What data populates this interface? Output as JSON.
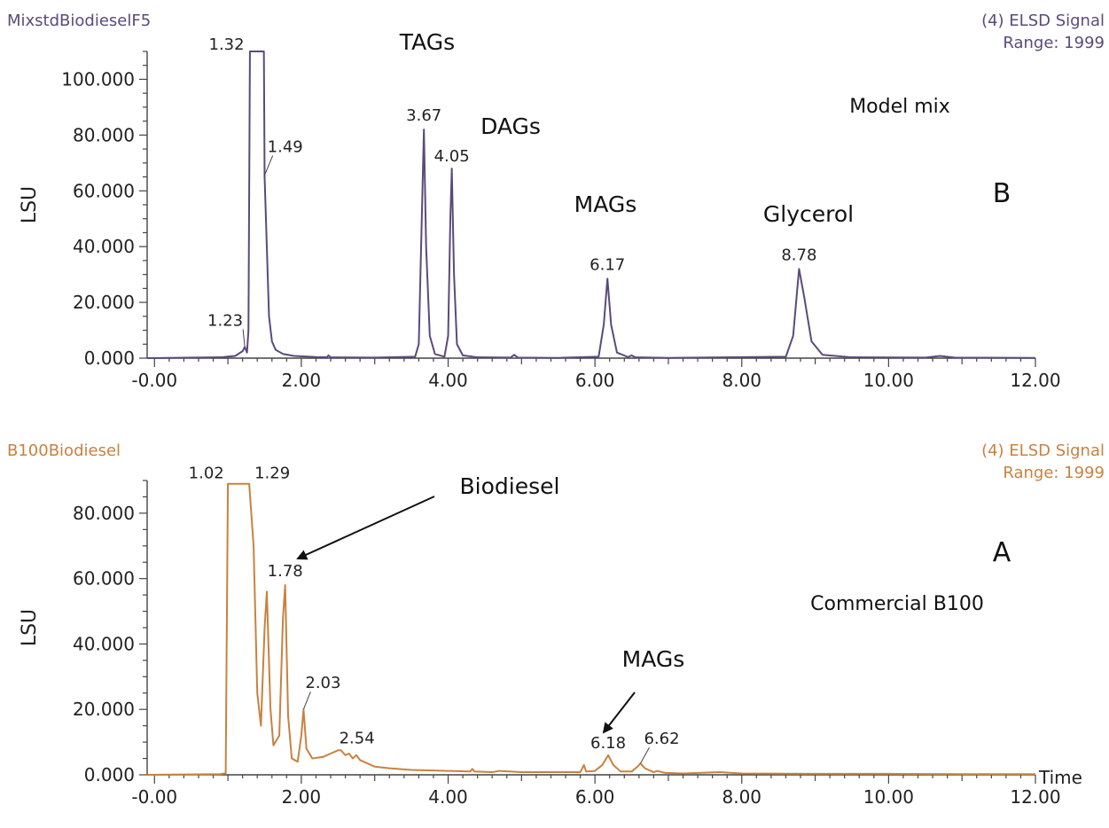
{
  "chart_data": [
    {
      "type": "line",
      "panel_letter": "B",
      "sample_name": "MixstdBiodieselF5",
      "signal_label": "(4) ELSD Signal",
      "range_label": "Range: 1999",
      "ylabel": "LSU",
      "xlabel": "",
      "line_color": "#5b4a7a",
      "header_color": "#5b4a7a",
      "xlim": [
        -0.1,
        12.0
      ],
      "ylim": [
        0,
        110
      ],
      "x_ticks": [
        {
          "value": 0,
          "label": "-0.00"
        },
        {
          "value": 2,
          "label": "2.00"
        },
        {
          "value": 4,
          "label": "4.00"
        },
        {
          "value": 6,
          "label": "6.00"
        },
        {
          "value": 8,
          "label": "8.00"
        },
        {
          "value": 10,
          "label": "10.00"
        },
        {
          "value": 12,
          "label": "12.00"
        }
      ],
      "y_ticks": [
        {
          "value": 0,
          "label": "0.000"
        },
        {
          "value": 20,
          "label": "20.000"
        },
        {
          "value": 40,
          "label": "40.000"
        },
        {
          "value": 60,
          "label": "60.000"
        },
        {
          "value": 80,
          "label": "80.000"
        },
        {
          "value": 100,
          "label": "100.000"
        }
      ],
      "series": [
        {
          "x": [
            -0.1,
            0.9,
            1.1,
            1.2,
            1.23,
            1.26,
            1.28,
            1.3,
            1.32,
            1.49,
            1.5,
            1.53,
            1.56,
            1.6,
            1.65,
            1.75,
            1.9,
            2.2,
            2.35,
            2.37,
            2.4,
            3.0,
            3.55,
            3.6,
            3.65,
            3.67,
            3.7,
            3.75,
            3.82,
            3.95,
            4.0,
            4.03,
            4.05,
            4.08,
            4.12,
            4.2,
            4.4,
            4.85,
            4.9,
            4.95,
            5.5,
            6.05,
            6.12,
            6.17,
            6.22,
            6.3,
            6.45,
            6.5,
            6.55,
            7.0,
            8.6,
            8.7,
            8.78,
            8.85,
            8.95,
            9.1,
            9.5,
            10.5,
            10.7,
            10.9,
            12.0
          ],
          "y": [
            0,
            0.3,
            0.8,
            2.5,
            4.0,
            2.0,
            10.0,
            110.0,
            110.0,
            110.0,
            65.0,
            40.0,
            15.0,
            6.0,
            3.0,
            1.5,
            0.8,
            0.4,
            0.3,
            1.0,
            0.3,
            0.2,
            0.5,
            5.0,
            60.0,
            82.0,
            40.0,
            8.0,
            1.5,
            0.5,
            8.0,
            50.0,
            68.0,
            30.0,
            5.0,
            1.0,
            0.3,
            0.2,
            1.2,
            0.2,
            0.1,
            0.5,
            12.0,
            28.5,
            12.0,
            2.0,
            0.4,
            1.0,
            0.3,
            0.1,
            0.5,
            8.0,
            32.0,
            22.0,
            6.0,
            1.2,
            0.3,
            0.2,
            0.8,
            0.2,
            0.1
          ]
        }
      ],
      "peaks": [
        {
          "x": 1.23,
          "y": 4.0,
          "label": "1.23"
        },
        {
          "x": 1.32,
          "y": 110.0,
          "label": "1.32"
        },
        {
          "x": 1.49,
          "y": 65.0,
          "label": "1.49"
        },
        {
          "x": 3.67,
          "y": 82.0,
          "label": "3.67"
        },
        {
          "x": 4.05,
          "y": 68.0,
          "label": "4.05"
        },
        {
          "x": 6.17,
          "y": 28.5,
          "label": "6.17"
        },
        {
          "x": 8.78,
          "y": 32.0,
          "label": "8.78"
        }
      ],
      "annotations": [
        {
          "text": "TAGs"
        },
        {
          "text": "DAGs"
        },
        {
          "text": "MAGs"
        },
        {
          "text": "Glycerol"
        },
        {
          "text": "Model mix"
        }
      ]
    },
    {
      "type": "line",
      "panel_letter": "A",
      "sample_name": "B100Biodiesel",
      "signal_label": "(4) ELSD Signal",
      "range_label": "Range: 1999",
      "ylabel": "LSU",
      "xlabel": "Time",
      "line_color": "#c8823f",
      "header_color": "#c8823f",
      "xlim": [
        -0.1,
        12.0
      ],
      "ylim": [
        0,
        90
      ],
      "x_ticks": [
        {
          "value": 0,
          "label": "-0.00"
        },
        {
          "value": 2,
          "label": "2.00"
        },
        {
          "value": 4,
          "label": "4.00"
        },
        {
          "value": 6,
          "label": "6.00"
        },
        {
          "value": 8,
          "label": "8.00"
        },
        {
          "value": 10,
          "label": "10.00"
        },
        {
          "value": 12,
          "label": "12.00"
        }
      ],
      "y_ticks": [
        {
          "value": 0,
          "label": "0.000"
        },
        {
          "value": 20,
          "label": "20.000"
        },
        {
          "value": 40,
          "label": "40.000"
        },
        {
          "value": 60,
          "label": "60.000"
        },
        {
          "value": 80,
          "label": "80.000"
        }
      ],
      "series": [
        {
          "x": [
            -0.1,
            0.9,
            0.97,
            1.0,
            1.02,
            1.29,
            1.35,
            1.4,
            1.45,
            1.5,
            1.53,
            1.58,
            1.62,
            1.7,
            1.75,
            1.78,
            1.82,
            1.87,
            1.95,
            2.0,
            2.03,
            2.07,
            2.15,
            2.3,
            2.4,
            2.45,
            2.5,
            2.54,
            2.6,
            2.65,
            2.7,
            2.75,
            2.8,
            2.9,
            3.0,
            3.2,
            3.5,
            4.0,
            4.3,
            4.33,
            4.36,
            4.6,
            4.7,
            5.0,
            5.5,
            5.8,
            5.85,
            5.88,
            6.0,
            6.1,
            6.18,
            6.25,
            6.35,
            6.5,
            6.58,
            6.62,
            6.68,
            6.8,
            6.85,
            6.95,
            7.2,
            7.7,
            8.0,
            9.0,
            10.0,
            11.0,
            12.0
          ],
          "y": [
            0,
            0.2,
            0.5,
            89.0,
            89.0,
            89.0,
            70.0,
            25.0,
            15.0,
            45.0,
            56.0,
            20.0,
            9.0,
            12.0,
            48.0,
            58.0,
            18.0,
            5.0,
            4.0,
            12.0,
            20.0,
            8.0,
            5.0,
            5.5,
            6.5,
            7.0,
            7.5,
            7.5,
            6.0,
            6.5,
            5.0,
            6.0,
            4.5,
            3.5,
            2.5,
            2.0,
            1.5,
            1.2,
            1.0,
            1.8,
            1.0,
            0.8,
            1.2,
            0.8,
            0.8,
            0.8,
            3.0,
            1.0,
            1.2,
            3.0,
            6.0,
            3.0,
            1.0,
            1.0,
            2.5,
            3.5,
            2.0,
            0.8,
            1.2,
            0.6,
            0.4,
            0.8,
            0.4,
            0.3,
            0.3,
            0.2,
            0.2
          ]
        }
      ],
      "peaks": [
        {
          "x": 1.02,
          "y": 89.0,
          "label": "1.02"
        },
        {
          "x": 1.29,
          "y": 89.0,
          "label": "1.29"
        },
        {
          "x": 1.78,
          "y": 58.0,
          "label": "1.78"
        },
        {
          "x": 2.03,
          "y": 20.0,
          "label": "2.03"
        },
        {
          "x": 2.54,
          "y": 7.5,
          "label": "2.54"
        },
        {
          "x": 6.18,
          "y": 6.0,
          "label": "6.18"
        },
        {
          "x": 6.62,
          "y": 3.5,
          "label": "6.62"
        }
      ],
      "annotations": [
        {
          "text": "Biodiesel"
        },
        {
          "text": "MAGs"
        },
        {
          "text": "Commercial B100"
        }
      ]
    }
  ]
}
